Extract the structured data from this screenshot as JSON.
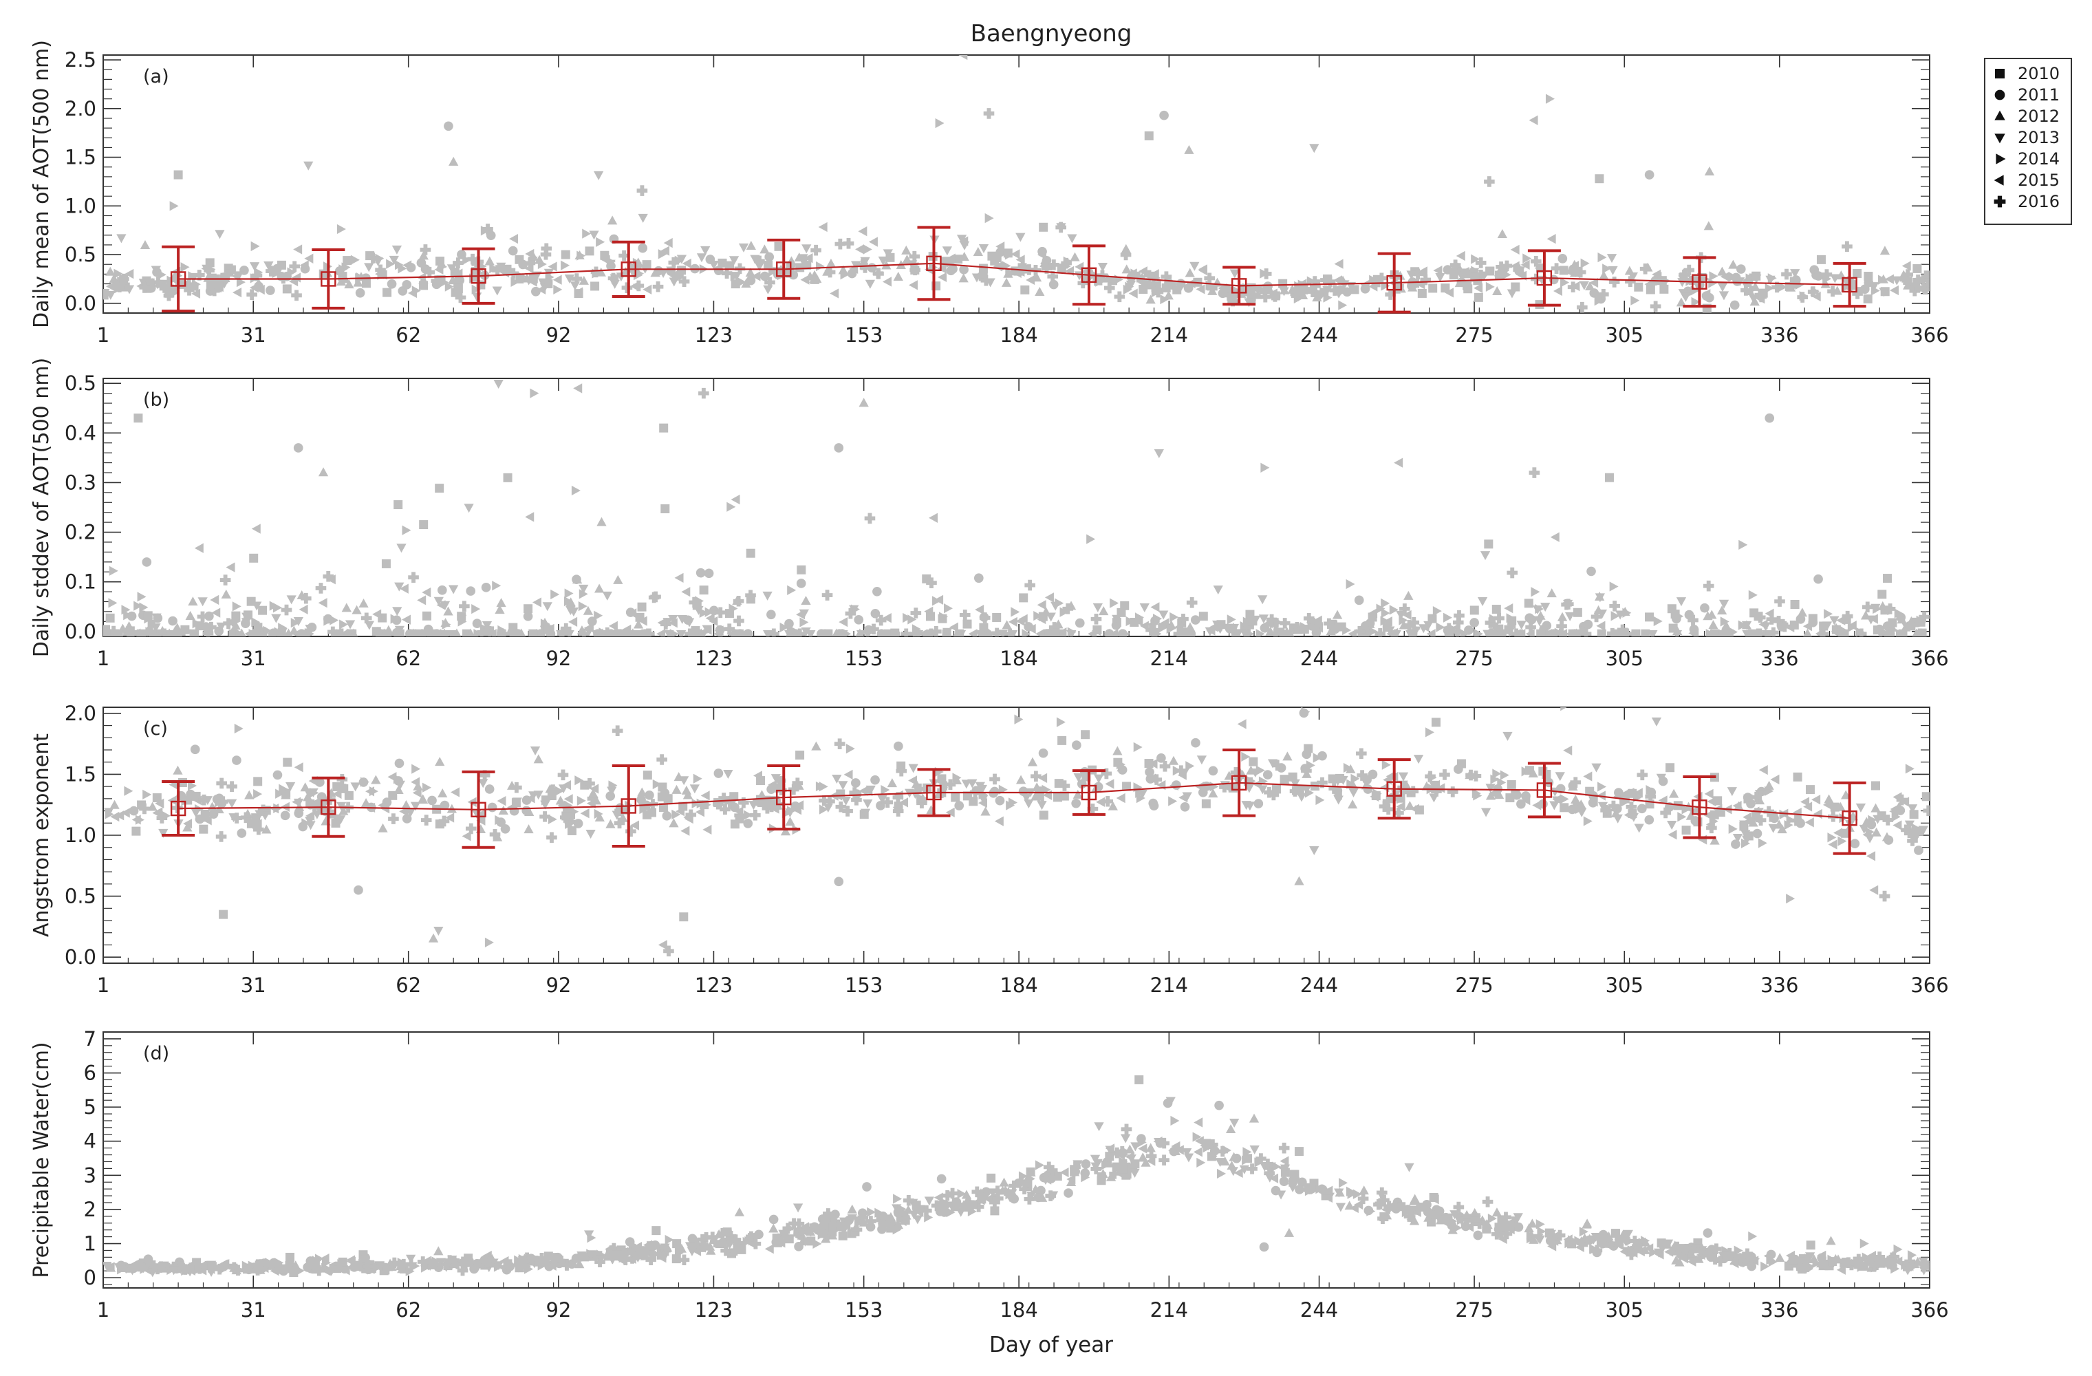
{
  "title": "Baengnyeong",
  "xlabel": "Day of year",
  "xlim": [
    1,
    366
  ],
  "xticks": [
    1,
    31,
    62,
    92,
    123,
    153,
    184,
    214,
    244,
    275,
    305,
    336,
    366
  ],
  "colors": {
    "points": "#bdbdbd",
    "mean": "#b22222",
    "frame": "#333333"
  },
  "legend": {
    "placement": "top-right outside",
    "entries": [
      {
        "label": "2010",
        "marker": "square"
      },
      {
        "label": "2011",
        "marker": "circle"
      },
      {
        "label": "2012",
        "marker": "triangle-up"
      },
      {
        "label": "2013",
        "marker": "triangle-down"
      },
      {
        "label": "2014",
        "marker": "triangle-right"
      },
      {
        "label": "2015",
        "marker": "triangle-left"
      },
      {
        "label": "2016",
        "marker": "plus"
      }
    ]
  },
  "chart_data": [
    {
      "id": "a",
      "type": "scatter",
      "panel_label": "(a)",
      "ylabel": "Daily mean of AOT(500 nm)",
      "ylim": [
        -0.1,
        2.55
      ],
      "yticks": [
        0.0,
        0.5,
        1.0,
        1.5,
        2.0,
        2.5
      ],
      "ytick_labels": [
        "0.0",
        "0.5",
        "1.0",
        "1.5",
        "2.0",
        "2.5"
      ],
      "scatter_model": {
        "base": [
          [
            1,
            0.2
          ],
          [
            60,
            0.3
          ],
          [
            100,
            0.35
          ],
          [
            150,
            0.4
          ],
          [
            175,
            0.38
          ],
          [
            200,
            0.3
          ],
          [
            225,
            0.1
          ],
          [
            250,
            0.15
          ],
          [
            280,
            0.3
          ],
          [
            320,
            0.18
          ],
          [
            366,
            0.22
          ]
        ],
        "spread": [
          [
            1,
            0.15
          ],
          [
            80,
            0.3
          ],
          [
            160,
            0.35
          ],
          [
            230,
            0.1
          ],
          [
            300,
            0.3
          ],
          [
            366,
            0.15
          ]
        ],
        "n": 900,
        "seed": 11
      },
      "highlight_points": [
        [
          16,
          1.32
        ],
        [
          70,
          1.82
        ],
        [
          71,
          1.45
        ],
        [
          100,
          1.32
        ],
        [
          168,
          1.85
        ],
        [
          173,
          2.55
        ],
        [
          178,
          1.95
        ],
        [
          210,
          1.72
        ],
        [
          213,
          1.93
        ],
        [
          218,
          1.57
        ],
        [
          243,
          1.6
        ],
        [
          290,
          2.1
        ],
        [
          287,
          1.88
        ],
        [
          278,
          1.25
        ],
        [
          300,
          1.28
        ],
        [
          310,
          1.32
        ],
        [
          322,
          1.35
        ],
        [
          42,
          1.42
        ],
        [
          15,
          1.0
        ]
      ],
      "mean_series": [
        {
          "doy": 16,
          "mean": 0.25,
          "sd": 0.33
        },
        {
          "doy": 46,
          "mean": 0.25,
          "sd": 0.3
        },
        {
          "doy": 76,
          "mean": 0.28,
          "sd": 0.28
        },
        {
          "doy": 106,
          "mean": 0.35,
          "sd": 0.28
        },
        {
          "doy": 137,
          "mean": 0.35,
          "sd": 0.3
        },
        {
          "doy": 167,
          "mean": 0.41,
          "sd": 0.37
        },
        {
          "doy": 198,
          "mean": 0.29,
          "sd": 0.3
        },
        {
          "doy": 228,
          "mean": 0.18,
          "sd": 0.19
        },
        {
          "doy": 259,
          "mean": 0.21,
          "sd": 0.3
        },
        {
          "doy": 289,
          "mean": 0.26,
          "sd": 0.28
        },
        {
          "doy": 320,
          "mean": 0.22,
          "sd": 0.25
        },
        {
          "doy": 350,
          "mean": 0.19,
          "sd": 0.22
        }
      ]
    },
    {
      "id": "b",
      "type": "scatter",
      "panel_label": "(b)",
      "ylabel": "Daily stddev of AOT(500 nm)",
      "ylim": [
        -0.01,
        0.51
      ],
      "yticks": [
        0.0,
        0.1,
        0.2,
        0.3,
        0.4,
        0.5
      ],
      "ytick_labels": [
        "0.0",
        "0.1",
        "0.2",
        "0.3",
        "0.4",
        "0.5"
      ],
      "scatter_model": {
        "base": [
          [
            1,
            0.01
          ],
          [
            366,
            0.01
          ]
        ],
        "spread": [
          [
            1,
            0.05
          ],
          [
            60,
            0.12
          ],
          [
            100,
            0.12
          ],
          [
            160,
            0.12
          ],
          [
            200,
            0.06
          ],
          [
            240,
            0.02
          ],
          [
            280,
            0.08
          ],
          [
            310,
            0.1
          ],
          [
            366,
            0.04
          ]
        ],
        "n": 900,
        "seed": 23
      },
      "highlight_points": [
        [
          8,
          0.43
        ],
        [
          40,
          0.37
        ],
        [
          45,
          0.32
        ],
        [
          80,
          0.5
        ],
        [
          87,
          0.48
        ],
        [
          96,
          0.49
        ],
        [
          121,
          0.48
        ],
        [
          113,
          0.41
        ],
        [
          148,
          0.37
        ],
        [
          153,
          0.46
        ],
        [
          212,
          0.36
        ],
        [
          233,
          0.33
        ],
        [
          260,
          0.34
        ],
        [
          287,
          0.32
        ],
        [
          302,
          0.31
        ],
        [
          334,
          0.43
        ]
      ],
      "mean_series": []
    },
    {
      "id": "c",
      "type": "scatter",
      "panel_label": "(c)",
      "ylabel": "Angstrom exponent",
      "ylim": [
        -0.05,
        2.05
      ],
      "yticks": [
        0.0,
        0.5,
        1.0,
        1.5,
        2.0
      ],
      "ytick_labels": [
        "0.0",
        "0.5",
        "1.0",
        "1.5",
        "2.0"
      ],
      "scatter_model": {
        "base": [
          [
            1,
            1.2
          ],
          [
            60,
            1.25
          ],
          [
            120,
            1.25
          ],
          [
            180,
            1.35
          ],
          [
            230,
            1.45
          ],
          [
            280,
            1.4
          ],
          [
            320,
            1.2
          ],
          [
            366,
            1.1
          ]
        ],
        "spread": [
          [
            1,
            0.25
          ],
          [
            80,
            0.35
          ],
          [
            150,
            0.25
          ],
          [
            230,
            0.25
          ],
          [
            300,
            0.25
          ],
          [
            366,
            0.35
          ]
        ],
        "n": 900,
        "seed": 37
      },
      "highlight_points": [
        [
          25,
          0.35
        ],
        [
          52,
          0.55
        ],
        [
          67,
          0.15
        ],
        [
          68,
          0.22
        ],
        [
          78,
          0.12
        ],
        [
          113,
          0.1
        ],
        [
          114,
          0.05
        ],
        [
          117,
          0.33
        ],
        [
          148,
          0.62
        ],
        [
          240,
          0.62
        ],
        [
          243,
          0.88
        ],
        [
          338,
          0.48
        ],
        [
          355,
          0.55
        ],
        [
          357,
          0.5
        ]
      ],
      "mean_series": [
        {
          "doy": 16,
          "mean": 1.22,
          "sd": 0.22
        },
        {
          "doy": 46,
          "mean": 1.23,
          "sd": 0.24
        },
        {
          "doy": 76,
          "mean": 1.21,
          "sd": 0.31
        },
        {
          "doy": 106,
          "mean": 1.24,
          "sd": 0.33
        },
        {
          "doy": 137,
          "mean": 1.31,
          "sd": 0.26
        },
        {
          "doy": 167,
          "mean": 1.35,
          "sd": 0.19
        },
        {
          "doy": 198,
          "mean": 1.35,
          "sd": 0.18
        },
        {
          "doy": 228,
          "mean": 1.43,
          "sd": 0.27
        },
        {
          "doy": 259,
          "mean": 1.38,
          "sd": 0.24
        },
        {
          "doy": 289,
          "mean": 1.37,
          "sd": 0.22
        },
        {
          "doy": 320,
          "mean": 1.23,
          "sd": 0.25
        },
        {
          "doy": 350,
          "mean": 1.14,
          "sd": 0.29
        }
      ]
    },
    {
      "id": "d",
      "type": "scatter",
      "panel_label": "(d)",
      "ylabel": "Precipitable Water(cm)",
      "ylim": [
        -0.3,
        7.2
      ],
      "yticks": [
        0,
        1,
        2,
        3,
        4,
        5,
        6,
        7
      ],
      "ytick_labels": [
        "0",
        "1",
        "2",
        "3",
        "4",
        "5",
        "6",
        "7"
      ],
      "scatter_model": {
        "base": [
          [
            1,
            0.3
          ],
          [
            31,
            0.3
          ],
          [
            62,
            0.35
          ],
          [
            92,
            0.5
          ],
          [
            123,
            1.0
          ],
          [
            153,
            1.6
          ],
          [
            184,
            2.6
          ],
          [
            214,
            3.8
          ],
          [
            225,
            3.5
          ],
          [
            244,
            2.5
          ],
          [
            275,
            1.6
          ],
          [
            305,
            0.9
          ],
          [
            336,
            0.5
          ],
          [
            366,
            0.4
          ]
        ],
        "spread": [
          [
            1,
            0.12
          ],
          [
            92,
            0.25
          ],
          [
            150,
            0.5
          ],
          [
            214,
            0.6
          ],
          [
            260,
            0.5
          ],
          [
            336,
            0.3
          ],
          [
            366,
            0.2
          ]
        ],
        "n": 1100,
        "seed": 53
      },
      "highlight_points": [
        [
          208,
          5.8
        ],
        [
          224,
          5.05
        ],
        [
          231,
          4.65
        ],
        [
          200,
          4.45
        ],
        [
          215,
          4.6
        ],
        [
          220,
          4.55
        ],
        [
          237,
          3.8
        ],
        [
          240,
          3.7
        ],
        [
          233,
          0.9
        ],
        [
          238,
          1.3
        ],
        [
          262,
          3.25
        ],
        [
          244,
          2.6
        ],
        [
          246,
          2.55
        ]
      ],
      "mean_series": []
    }
  ]
}
